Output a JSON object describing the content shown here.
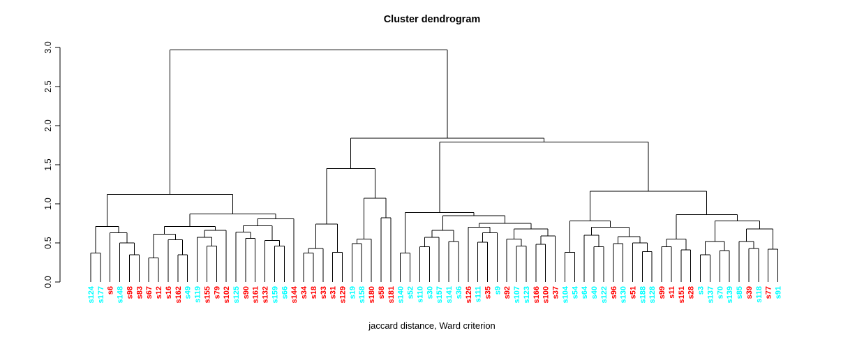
{
  "chart_data": {
    "type": "dendrogram",
    "title": "Cluster dendrogram",
    "xlabel": "jaccard distance, Ward criterion",
    "ylabel": "",
    "ylim": [
      0.0,
      3.0
    ],
    "yticks": [
      "0.0",
      "0.5",
      "1.0",
      "1.5",
      "2.0",
      "2.5",
      "3.0"
    ],
    "grid": false,
    "legend": "none",
    "label_colors": {
      "cyan": "#00FFFF",
      "red": "#FF0000"
    },
    "line_color": "#000000",
    "leaves": [
      {
        "label": "s124",
        "color": "cyan"
      },
      {
        "label": "s177",
        "color": "cyan"
      },
      {
        "label": "s6",
        "color": "red"
      },
      {
        "label": "s148",
        "color": "cyan"
      },
      {
        "label": "s98",
        "color": "red"
      },
      {
        "label": "s83",
        "color": "red"
      },
      {
        "label": "s67",
        "color": "red"
      },
      {
        "label": "s12",
        "color": "red"
      },
      {
        "label": "s16",
        "color": "red"
      },
      {
        "label": "s162",
        "color": "red"
      },
      {
        "label": "s49",
        "color": "cyan"
      },
      {
        "label": "s119",
        "color": "cyan"
      },
      {
        "label": "s155",
        "color": "red"
      },
      {
        "label": "s79",
        "color": "red"
      },
      {
        "label": "s102",
        "color": "red"
      },
      {
        "label": "s125",
        "color": "cyan"
      },
      {
        "label": "s90",
        "color": "red"
      },
      {
        "label": "s161",
        "color": "red"
      },
      {
        "label": "s132",
        "color": "red"
      },
      {
        "label": "s159",
        "color": "cyan"
      },
      {
        "label": "s66",
        "color": "cyan"
      },
      {
        "label": "s144",
        "color": "red"
      },
      {
        "label": "s34",
        "color": "red"
      },
      {
        "label": "s18",
        "color": "red"
      },
      {
        "label": "s33",
        "color": "red"
      },
      {
        "label": "s31",
        "color": "red"
      },
      {
        "label": "s129",
        "color": "red"
      },
      {
        "label": "s19",
        "color": "cyan"
      },
      {
        "label": "s158",
        "color": "cyan"
      },
      {
        "label": "s180",
        "color": "red"
      },
      {
        "label": "s58",
        "color": "red"
      },
      {
        "label": "s181",
        "color": "red"
      },
      {
        "label": "s140",
        "color": "cyan"
      },
      {
        "label": "s52",
        "color": "cyan"
      },
      {
        "label": "s110",
        "color": "cyan"
      },
      {
        "label": "s30",
        "color": "cyan"
      },
      {
        "label": "s157",
        "color": "cyan"
      },
      {
        "label": "s141",
        "color": "cyan"
      },
      {
        "label": "s36",
        "color": "cyan"
      },
      {
        "label": "s126",
        "color": "red"
      },
      {
        "label": "s111",
        "color": "cyan"
      },
      {
        "label": "s35",
        "color": "red"
      },
      {
        "label": "s9",
        "color": "cyan"
      },
      {
        "label": "s92",
        "color": "red"
      },
      {
        "label": "s107",
        "color": "cyan"
      },
      {
        "label": "s123",
        "color": "cyan"
      },
      {
        "label": "s166",
        "color": "red"
      },
      {
        "label": "s100",
        "color": "red"
      },
      {
        "label": "s37",
        "color": "red"
      },
      {
        "label": "s104",
        "color": "cyan"
      },
      {
        "label": "s54",
        "color": "cyan"
      },
      {
        "label": "s64",
        "color": "cyan"
      },
      {
        "label": "s40",
        "color": "cyan"
      },
      {
        "label": "s122",
        "color": "cyan"
      },
      {
        "label": "s96",
        "color": "red"
      },
      {
        "label": "s130",
        "color": "cyan"
      },
      {
        "label": "s51",
        "color": "red"
      },
      {
        "label": "s188",
        "color": "cyan"
      },
      {
        "label": "s128",
        "color": "cyan"
      },
      {
        "label": "s99",
        "color": "red"
      },
      {
        "label": "s11",
        "color": "red"
      },
      {
        "label": "s151",
        "color": "red"
      },
      {
        "label": "s28",
        "color": "red"
      },
      {
        "label": "s3",
        "color": "cyan"
      },
      {
        "label": "s137",
        "color": "cyan"
      },
      {
        "label": "s70",
        "color": "cyan"
      },
      {
        "label": "s139",
        "color": "cyan"
      },
      {
        "label": "s85",
        "color": "cyan"
      },
      {
        "label": "s39",
        "color": "red"
      },
      {
        "label": "s118",
        "color": "cyan"
      },
      {
        "label": "s77",
        "color": "red"
      },
      {
        "label": "s91",
        "color": "cyan"
      }
    ],
    "tree": {
      "h": 2.97,
      "c": [
        {
          "h": 1.12,
          "c": [
            {
              "h": 0.71,
              "c": [
                {
                  "h": 0.37,
                  "c": [
                    0,
                    1
                  ]
                },
                {
                  "h": 0.63,
                  "c": [
                    2,
                    {
                      "h": 0.5,
                      "c": [
                        3,
                        {
                          "h": 0.35,
                          "c": [
                            4,
                            5
                          ]
                        }
                      ]
                    }
                  ]
                }
              ]
            },
            {
              "h": 0.87,
              "c": [
                {
                  "h": 0.71,
                  "c": [
                    {
                      "h": 0.61,
                      "c": [
                        {
                          "h": 0.31,
                          "c": [
                            6,
                            7
                          ]
                        },
                        {
                          "h": 0.54,
                          "c": [
                            8,
                            {
                              "h": 0.35,
                              "c": [
                                9,
                                10
                              ]
                            }
                          ]
                        }
                      ]
                    },
                    {
                      "h": 0.66,
                      "c": [
                        {
                          "h": 0.57,
                          "c": [
                            11,
                            {
                              "h": 0.46,
                              "c": [
                                12,
                                13
                              ]
                            }
                          ]
                        },
                        14
                      ]
                    }
                  ]
                },
                {
                  "h": 0.81,
                  "c": [
                    {
                      "h": 0.72,
                      "c": [
                        {
                          "h": 0.64,
                          "c": [
                            15,
                            {
                              "h": 0.56,
                              "c": [
                                16,
                                17
                              ]
                            }
                          ]
                        },
                        {
                          "h": 0.53,
                          "c": [
                            18,
                            {
                              "h": 0.46,
                              "c": [
                                19,
                                20
                              ]
                            }
                          ]
                        }
                      ]
                    },
                    21
                  ]
                }
              ]
            }
          ]
        },
        {
          "h": 1.84,
          "c": [
            {
              "h": 1.45,
              "c": [
                {
                  "h": 0.74,
                  "c": [
                    {
                      "h": 0.43,
                      "c": [
                        {
                          "h": 0.37,
                          "c": [
                            22,
                            23
                          ]
                        },
                        24
                      ]
                    },
                    {
                      "h": 0.38,
                      "c": [
                        25,
                        26
                      ]
                    }
                  ]
                },
                {
                  "h": 1.07,
                  "c": [
                    {
                      "h": 0.55,
                      "c": [
                        {
                          "h": 0.49,
                          "c": [
                            27,
                            28
                          ]
                        },
                        29
                      ]
                    },
                    {
                      "h": 0.82,
                      "c": [
                        30,
                        31
                      ]
                    }
                  ]
                }
              ]
            },
            {
              "h": 1.79,
              "c": [
                {
                  "h": 0.89,
                  "c": [
                    {
                      "h": 0.37,
                      "c": [
                        32,
                        33
                      ]
                    },
                    {
                      "h": 0.85,
                      "c": [
                        {
                          "h": 0.66,
                          "c": [
                            {
                              "h": 0.57,
                              "c": [
                                {
                                  "h": 0.45,
                                  "c": [
                                    34,
                                    35
                                  ]
                                },
                                36
                              ]
                            },
                            {
                              "h": 0.52,
                              "c": [
                                37,
                                38
                              ]
                            }
                          ]
                        },
                        {
                          "h": 0.75,
                          "c": [
                            {
                              "h": 0.7,
                              "c": [
                                39,
                                {
                                  "h": 0.63,
                                  "c": [
                                    {
                                      "h": 0.51,
                                      "c": [
                                        40,
                                        41
                                      ]
                                    },
                                    42
                                  ]
                                }
                              ]
                            },
                            {
                              "h": 0.68,
                              "c": [
                                {
                                  "h": 0.55,
                                  "c": [
                                    43,
                                    {
                                      "h": 0.46,
                                      "c": [
                                        44,
                                        45
                                      ]
                                    }
                                  ]
                                },
                                {
                                  "h": 0.59,
                                  "c": [
                                    {
                                      "h": 0.48,
                                      "c": [
                                        46,
                                        47
                                      ]
                                    },
                                    48
                                  ]
                                }
                              ]
                            }
                          ]
                        }
                      ]
                    }
                  ]
                },
                {
                  "h": 1.16,
                  "c": [
                    {
                      "h": 0.78,
                      "c": [
                        {
                          "h": 0.38,
                          "c": [
                            49,
                            50
                          ]
                        },
                        {
                          "h": 0.7,
                          "c": [
                            {
                              "h": 0.6,
                              "c": [
                                51,
                                {
                                  "h": 0.45,
                                  "c": [
                                    52,
                                    53
                                  ]
                                }
                              ]
                            },
                            {
                              "h": 0.58,
                              "c": [
                                {
                                  "h": 0.49,
                                  "c": [
                                    54,
                                    55
                                  ]
                                },
                                {
                                  "h": 0.5,
                                  "c": [
                                    56,
                                    {
                                      "h": 0.39,
                                      "c": [
                                        57,
                                        58
                                      ]
                                    }
                                  ]
                                }
                              ]
                            }
                          ]
                        }
                      ]
                    },
                    {
                      "h": 0.86,
                      "c": [
                        {
                          "h": 0.55,
                          "c": [
                            {
                              "h": 0.45,
                              "c": [
                                59,
                                60
                              ]
                            },
                            {
                              "h": 0.41,
                              "c": [
                                61,
                                62
                              ]
                            }
                          ]
                        },
                        {
                          "h": 0.78,
                          "c": [
                            {
                              "h": 0.52,
                              "c": [
                                {
                                  "h": 0.35,
                                  "c": [
                                    63,
                                    64
                                  ]
                                },
                                {
                                  "h": 0.4,
                                  "c": [
                                    65,
                                    66
                                  ]
                                }
                              ]
                            },
                            {
                              "h": 0.68,
                              "c": [
                                {
                                  "h": 0.52,
                                  "c": [
                                    67,
                                    {
                                      "h": 0.43,
                                      "c": [
                                        68,
                                        69
                                      ]
                                    }
                                  ]
                                },
                                {
                                  "h": 0.42,
                                  "c": [
                                    70,
                                    71
                                  ]
                                }
                              ]
                            }
                          ]
                        }
                      ]
                    }
                  ]
                }
              ]
            }
          ]
        }
      ]
    }
  }
}
